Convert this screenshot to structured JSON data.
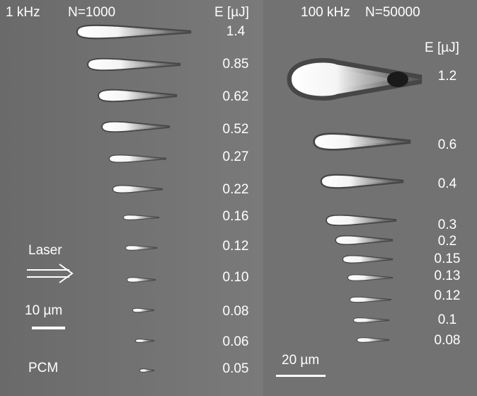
{
  "left": {
    "rate": "1 kHz",
    "pulses": "N=1000",
    "energy_label": "E [µJ]",
    "energies": [
      "1.4",
      "0.85",
      "0.62",
      "0.52",
      "0.27",
      "0.22",
      "0.16",
      "0.12",
      "0.10",
      "0.08",
      "0.06",
      "0.05"
    ],
    "laser": "Laser",
    "scale": "10 µm",
    "material": "PCM"
  },
  "right": {
    "rate": "100 kHz",
    "pulses": "N=50000",
    "energy_label": "E [µJ]",
    "energies": [
      "1.2",
      "0.6",
      "0.4",
      "0.3",
      "0.2",
      "0.15",
      "0.13",
      "0.12",
      "0.1",
      "0.08"
    ],
    "scale": "20 µm"
  }
}
